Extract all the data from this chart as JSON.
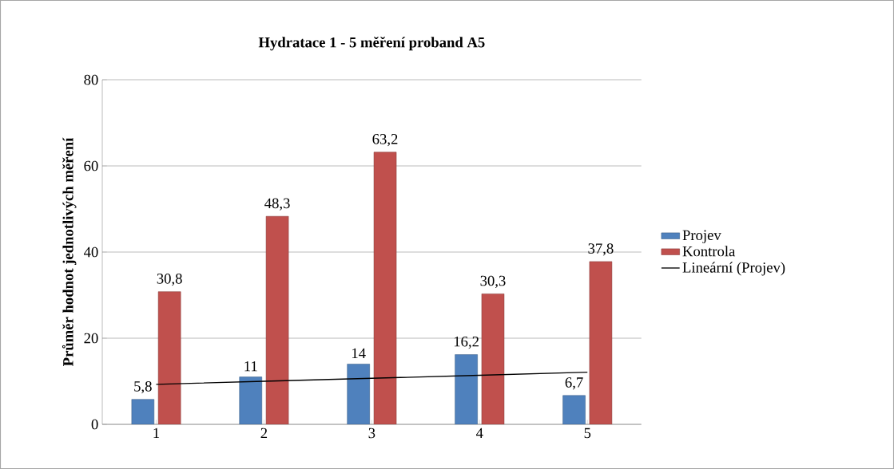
{
  "chart_data": {
    "type": "bar",
    "title": "Hydratace 1 - 5 měření proband A5",
    "ylabel": "Průměr hodnot jednotlivých měření",
    "categories": [
      "1",
      "2",
      "3",
      "4",
      "5"
    ],
    "series": [
      {
        "name": "Projev",
        "color": "#4f81bd",
        "values": [
          5.8,
          11,
          14,
          16.2,
          6.7
        ],
        "value_labels": [
          "5,8",
          "11",
          "14",
          "16,2",
          "6,7"
        ]
      },
      {
        "name": "Kontrola",
        "color": "#c0504d",
        "values": [
          30.8,
          48.3,
          63.2,
          30.3,
          37.8
        ],
        "value_labels": [
          "30,8",
          "48,3",
          "63,2",
          "30,3",
          "37,8"
        ]
      },
      {
        "name": "Lineární (Projev)",
        "type": "line",
        "color": "#000000",
        "values": [
          9.3,
          10,
          10.7,
          11.4,
          12.1
        ]
      }
    ],
    "ylim": [
      0,
      80
    ],
    "yticks": [
      0,
      20,
      40,
      60,
      80
    ],
    "grid": "y",
    "legend": "right"
  }
}
